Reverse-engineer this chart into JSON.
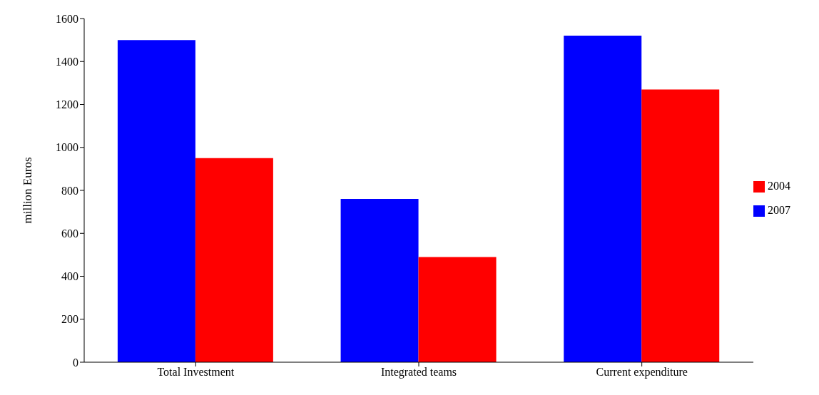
{
  "chart_data": {
    "type": "bar",
    "ylabel": "million Euros",
    "categories": [
      "Total Investment",
      "Integrated teams",
      "Current expenditure"
    ],
    "series": [
      {
        "name": "2007",
        "color": "#0000ff",
        "values": [
          1500,
          760,
          1520
        ]
      },
      {
        "name": "2004",
        "color": "#ff0000",
        "values": [
          950,
          490,
          1270
        ]
      }
    ],
    "ylim": [
      0,
      1600
    ],
    "yticks": [
      0,
      200,
      400,
      600,
      800,
      1000,
      1200,
      1400,
      1600
    ],
    "grid": false,
    "legend": "right"
  }
}
